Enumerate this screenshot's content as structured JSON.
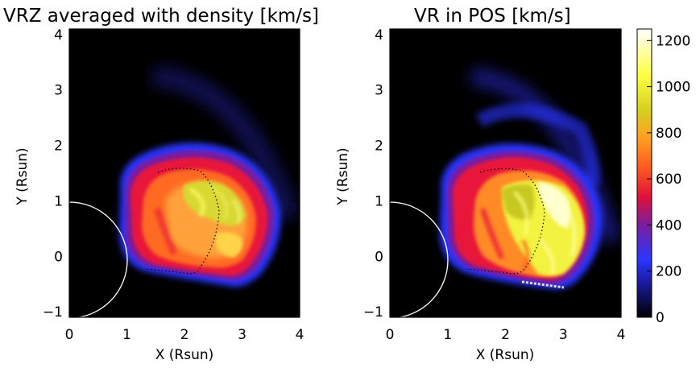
{
  "chart_data": [
    {
      "type": "heatmap",
      "title": "VRZ averaged with density [km/s]",
      "xlabel": "X (Rsun)",
      "ylabel": "Y (Rsun)",
      "xlim": [
        0,
        4
      ],
      "ylim": [
        -1.1,
        4.1
      ],
      "x_ticks": [
        "0",
        "1",
        "2",
        "3",
        "4"
      ],
      "y_ticks": [
        "−1",
        "0",
        "1",
        "2",
        "3",
        "4"
      ],
      "solar_disk_radius": 1,
      "background_value": 0,
      "dotted_contour": true
    },
    {
      "type": "heatmap",
      "title": "VR in POS [km/s]",
      "xlabel": "X (Rsun)",
      "ylabel": "Y (Rsun)",
      "xlim": [
        0,
        4
      ],
      "ylim": [
        -1.1,
        4.1
      ],
      "x_ticks": [
        "0",
        "1",
        "2",
        "3",
        "4"
      ],
      "y_ticks": [
        "−1",
        "0",
        "1",
        "2",
        "3",
        "4"
      ],
      "solar_disk_radius": 1,
      "background_value": 0,
      "dotted_contour": true
    }
  ],
  "colorbar": {
    "range": [
      0,
      1250
    ],
    "ticks": [
      "0",
      "200",
      "400",
      "600",
      "800",
      "1000",
      "1200"
    ],
    "colormap": [
      {
        "v": 0,
        "color": "#000000"
      },
      {
        "v": 150,
        "color": "#1a1aa0"
      },
      {
        "v": 250,
        "color": "#2a36ff"
      },
      {
        "v": 400,
        "color": "#7a1e9e"
      },
      {
        "v": 520,
        "color": "#e0103c"
      },
      {
        "v": 650,
        "color": "#ff5a1e"
      },
      {
        "v": 780,
        "color": "#ffa020"
      },
      {
        "v": 900,
        "color": "#d6d020"
      },
      {
        "v": 1050,
        "color": "#ffff40"
      },
      {
        "v": 1250,
        "color": "#ffffff"
      }
    ]
  },
  "colors": {
    "plot_background": "#000000",
    "limb": "#ffffff",
    "contour": "#000000"
  }
}
